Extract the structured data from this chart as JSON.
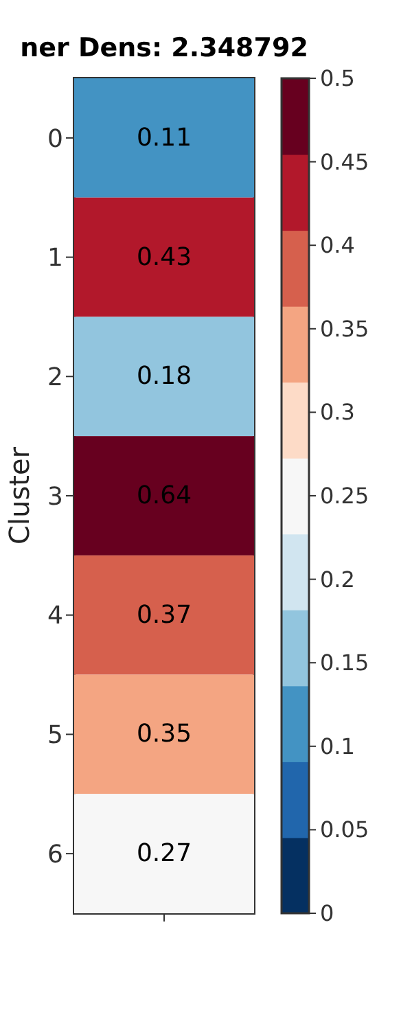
{
  "chart_data": {
    "type": "heatmap",
    "title": "ner Dens: 2.348792",
    "ylabel": "Cluster",
    "categories": [
      null
    ],
    "y_categories": [
      "0",
      "1",
      "2",
      "3",
      "4",
      "5",
      "6"
    ],
    "cells": [
      [
        0.11
      ],
      [
        0.43
      ],
      [
        0.18
      ],
      [
        0.64
      ],
      [
        0.37
      ],
      [
        0.35
      ],
      [
        0.27
      ]
    ],
    "data_labels": true,
    "colors": [
      "#053061",
      "#2166ac",
      "#4393c3",
      "#92c5de",
      "#d1e5f0",
      "#f7f7f7",
      "#fddbc7",
      "#f4a582",
      "#d6604d",
      "#b2182b",
      "#67001f"
    ],
    "clim": [
      0,
      0.5
    ],
    "cticks": [
      0,
      0.05,
      0.1,
      0.15,
      0.2,
      0.25,
      0.3,
      0.35,
      0.4,
      0.45,
      0.5
    ]
  }
}
